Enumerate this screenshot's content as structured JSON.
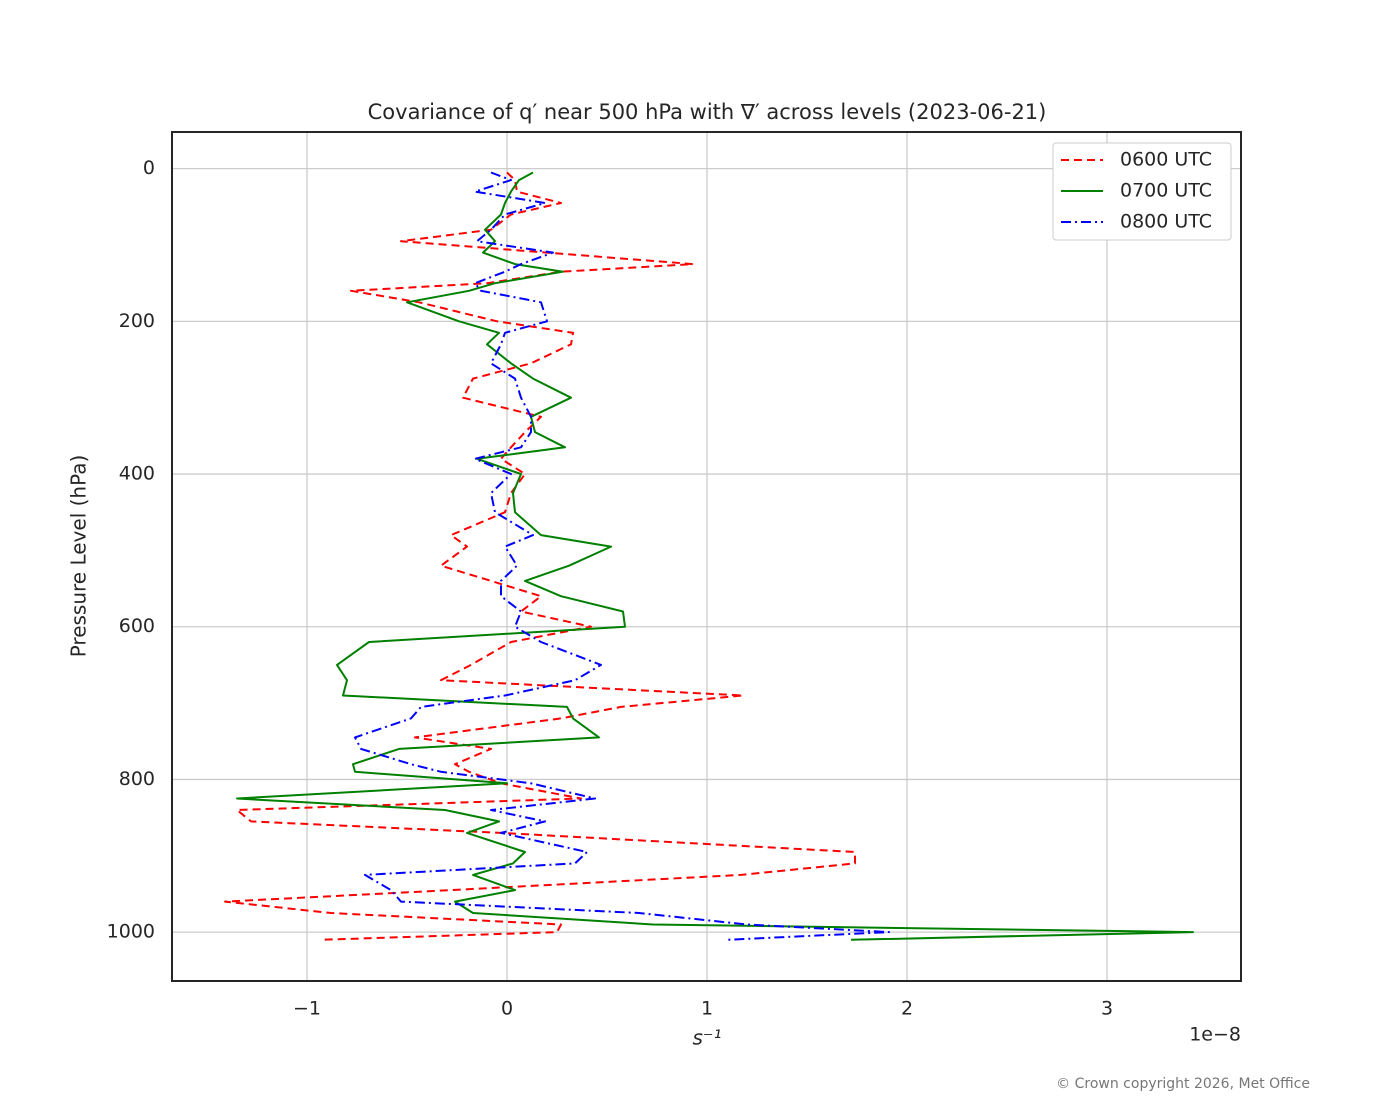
{
  "chart_data": {
    "type": "line",
    "title": "Covariance of q′ near 500 hPa with ∇′ across levels (2023-06-21)",
    "x_label": "s⁻¹",
    "y_label": "Pressure Level (hPa)",
    "x_offset_label": "1e−8",
    "footer": "© Crown copyright 2026, Met Office",
    "levels": [
      5,
      15,
      30,
      45,
      60,
      80,
      95,
      110,
      125,
      135,
      150,
      160,
      175,
      200,
      215,
      230,
      255,
      275,
      300,
      325,
      345,
      365,
      380,
      400,
      425,
      450,
      480,
      495,
      520,
      540,
      560,
      580,
      600,
      620,
      650,
      670,
      690,
      705,
      720,
      745,
      760,
      780,
      790,
      805,
      825,
      840,
      855,
      870,
      895,
      910,
      925,
      945,
      960,
      975,
      990,
      1000,
      1010
    ],
    "series": [
      {
        "name": "0600 UTC",
        "color": "#ff0000",
        "dash": "8,5",
        "values": [
          0.0,
          0.04,
          0.05,
          0.27,
          0.02,
          -0.08,
          -0.53,
          0.2,
          0.93,
          0.27,
          -0.1,
          -0.78,
          -0.44,
          -0.05,
          0.33,
          0.32,
          0.12,
          -0.17,
          -0.22,
          0.17,
          0.09,
          0.02,
          -0.03,
          0.09,
          0.02,
          -0.01,
          -0.28,
          -0.2,
          -0.33,
          -0.08,
          0.17,
          0.07,
          0.42,
          0.02,
          -0.18,
          -0.33,
          1.18,
          0.57,
          0.27,
          -0.46,
          -0.08,
          -0.26,
          -0.19,
          -0.03,
          0.37,
          -1.35,
          -1.28,
          -0.03,
          1.74,
          1.74,
          1.17,
          -0.28,
          -1.41,
          -0.88,
          0.27,
          0.25,
          -0.93
        ]
      },
      {
        "name": "0700 UTC",
        "color": "#008000",
        "dash": "",
        "values": [
          0.13,
          0.06,
          0.02,
          -0.01,
          -0.03,
          -0.11,
          -0.06,
          -0.12,
          0.04,
          0.28,
          -0.06,
          -0.19,
          -0.5,
          -0.24,
          -0.04,
          -0.1,
          0.02,
          0.13,
          0.32,
          0.12,
          0.14,
          0.29,
          -0.15,
          0.07,
          0.03,
          0.04,
          0.17,
          0.52,
          0.31,
          0.09,
          0.27,
          0.58,
          0.59,
          -0.69,
          -0.85,
          -0.8,
          -0.82,
          0.3,
          0.33,
          0.46,
          -0.54,
          -0.77,
          -0.76,
          0.0,
          -1.35,
          -0.31,
          -0.04,
          -0.2,
          0.09,
          0.03,
          -0.17,
          0.04,
          -0.26,
          -0.17,
          0.73,
          3.43,
          1.72
        ]
      },
      {
        "name": "0800 UTC",
        "color": "#0000ff",
        "dash": "10,4,2,4",
        "values": [
          -0.08,
          0.02,
          -0.16,
          0.19,
          -0.01,
          -0.08,
          -0.15,
          0.23,
          0.07,
          -0.01,
          -0.16,
          -0.13,
          0.17,
          0.2,
          -0.01,
          -0.03,
          -0.08,
          0.04,
          0.07,
          0.12,
          0.12,
          0.07,
          -0.16,
          0.02,
          -0.08,
          -0.06,
          0.13,
          -0.01,
          0.05,
          -0.03,
          -0.03,
          0.07,
          0.04,
          0.17,
          0.47,
          0.34,
          -0.01,
          -0.43,
          -0.48,
          -0.76,
          -0.73,
          -0.48,
          -0.33,
          0.12,
          0.44,
          -0.08,
          0.19,
          -0.03,
          0.4,
          0.34,
          -0.71,
          -0.58,
          -0.53,
          0.66,
          1.2,
          1.91,
          1.1
        ]
      }
    ],
    "xlim": [
      -1.675,
      3.67
    ],
    "ylim": [
      -48,
      1064
    ],
    "invert_y": true,
    "xticks": [
      {
        "value": -1,
        "label": "−1"
      },
      0,
      1,
      2,
      3
    ],
    "yticks": [
      0,
      200,
      400,
      600,
      800,
      1000
    ],
    "grid": true,
    "legend": "upper right"
  }
}
